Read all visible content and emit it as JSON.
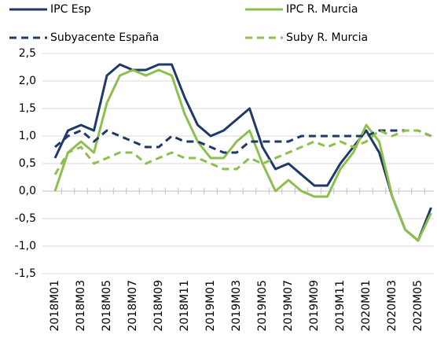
{
  "chart_data": {
    "type": "line",
    "categories": [
      "2018M01",
      null,
      "2018M03",
      null,
      "2018M05",
      null,
      "2018M07",
      null,
      "2018M09",
      null,
      "2018M11",
      null,
      "2019M01",
      null,
      "2019M03",
      null,
      "2019M05",
      null,
      "2019M07",
      null,
      "2019M09",
      null,
      "2019M11",
      null,
      "2020M01",
      null,
      "2020M03",
      null,
      "2020M05",
      null
    ],
    "series": [
      {
        "name": "IPC Esp",
        "color": "#1f3a68",
        "dashed": false,
        "values": [
          0.6,
          1.1,
          1.2,
          1.1,
          2.1,
          2.3,
          2.2,
          2.2,
          2.3,
          2.3,
          1.7,
          1.2,
          1.0,
          1.1,
          1.3,
          1.5,
          0.8,
          0.4,
          0.5,
          0.3,
          0.1,
          0.1,
          0.5,
          0.8,
          1.1,
          0.7,
          -0.1,
          -0.7,
          -0.9,
          -0.3
        ]
      },
      {
        "name": "IPC R. Murcia",
        "color": "#8dbf4e",
        "dashed": false,
        "values": [
          0.0,
          0.7,
          0.9,
          0.7,
          1.6,
          2.1,
          2.2,
          2.1,
          2.2,
          2.1,
          1.4,
          0.9,
          0.6,
          0.6,
          0.9,
          1.1,
          0.5,
          0.0,
          0.2,
          0.0,
          -0.1,
          -0.1,
          0.4,
          0.7,
          1.2,
          0.9,
          -0.1,
          -0.7,
          -0.9,
          -0.4
        ]
      },
      {
        "name": "Subyacente España",
        "color": "#1f3a68",
        "dashed": true,
        "values": [
          0.8,
          1.0,
          1.1,
          0.9,
          1.1,
          1.0,
          0.9,
          0.8,
          0.8,
          1.0,
          0.9,
          0.9,
          0.8,
          0.7,
          0.7,
          0.9,
          0.9,
          0.9,
          0.9,
          1.0,
          1.0,
          1.0,
          1.0,
          1.0,
          1.0,
          1.1,
          1.1,
          1.1,
          1.1,
          1.0
        ]
      },
      {
        "name": "Suby R. Murcia",
        "color": "#8dbf4e",
        "dashed": true,
        "values": [
          0.3,
          0.7,
          0.8,
          0.5,
          0.6,
          0.7,
          0.7,
          0.5,
          0.6,
          0.7,
          0.6,
          0.6,
          0.5,
          0.4,
          0.4,
          0.6,
          0.5,
          0.6,
          0.7,
          0.8,
          0.9,
          0.8,
          0.9,
          0.8,
          0.9,
          1.1,
          1.0,
          1.1,
          1.1,
          1.0
        ]
      }
    ],
    "ylim": [
      -1.5,
      2.5
    ],
    "yticks": [
      {
        "value": -1.5,
        "label": "-1,5"
      },
      {
        "value": -1,
        "label": "-1,0"
      },
      {
        "value": -0.5,
        "label": "-0,5"
      },
      {
        "value": 0,
        "label": "0,0"
      },
      {
        "value": 0.5,
        "label": "0,5"
      },
      {
        "value": 1,
        "label": "1,0"
      },
      {
        "value": 1.5,
        "label": "1,5"
      },
      {
        "value": 2,
        "label": "2,0"
      },
      {
        "value": 2.5,
        "label": "2,5"
      }
    ],
    "grid": true
  }
}
